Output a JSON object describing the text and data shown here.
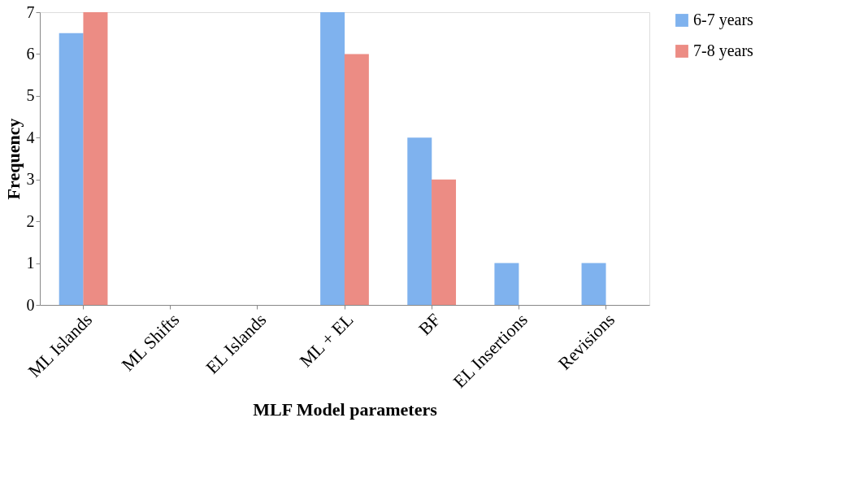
{
  "chart_data": {
    "type": "bar",
    "xlabel": "MLF Model parameters",
    "ylabel": "Frequency",
    "categories": [
      "ML Islands",
      "ML Shifts",
      "EL Islands",
      "ML + EL",
      "BF",
      "EL Insertions",
      "Revisions"
    ],
    "series": [
      {
        "name": "6-7 years",
        "color": "#7fb2ee",
        "values": [
          6.5,
          0,
          0,
          7,
          4,
          1,
          1
        ]
      },
      {
        "name": "7-8 years",
        "color": "#ec8c84",
        "values": [
          7,
          0,
          0,
          6,
          3,
          0,
          0
        ]
      }
    ],
    "ylim": [
      0,
      7
    ],
    "yticks": [
      0,
      1,
      2,
      3,
      4,
      5,
      6,
      7
    ],
    "grid": false,
    "legend": "right"
  }
}
